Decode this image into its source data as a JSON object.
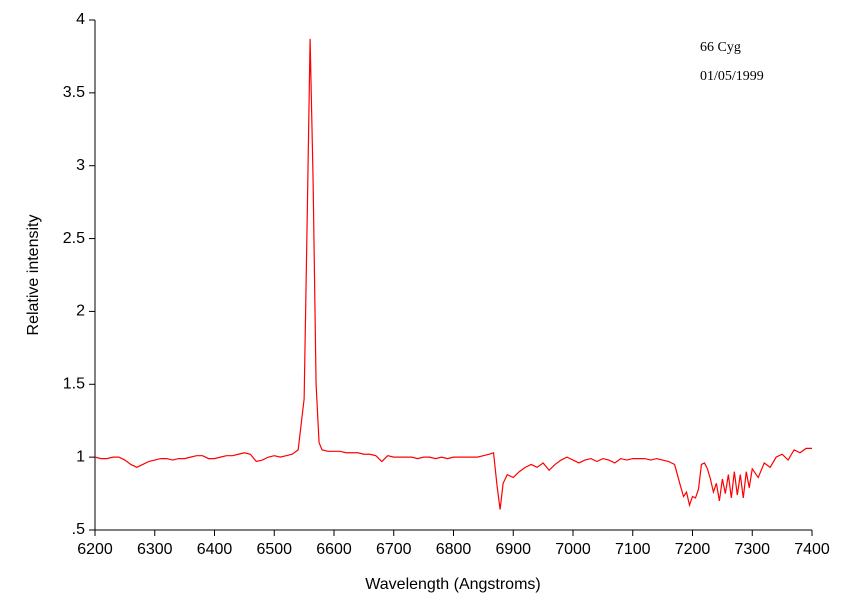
{
  "chart_data": {
    "type": "line",
    "x_label": "Wavelength (Angstroms)",
    "y_label": "Relative intensity",
    "annotations": [
      "66 Cyg",
      "01/05/1999"
    ],
    "color": "#ff0000",
    "xlim": [
      6200,
      7400
    ],
    "xticks": [
      6200,
      6300,
      6400,
      6500,
      6600,
      6700,
      6800,
      6900,
      7000,
      7100,
      7200,
      7300,
      7400
    ],
    "ylim": [
      0.5,
      4
    ],
    "yticks": [
      {
        "value": 0.5,
        "label": ".5"
      },
      1,
      1.5,
      2,
      2.5,
      3,
      3.5,
      4
    ],
    "x": [
      6200,
      6210,
      6220,
      6230,
      6240,
      6250,
      6260,
      6270,
      6280,
      6290,
      6300,
      6310,
      6320,
      6330,
      6340,
      6350,
      6360,
      6370,
      6380,
      6390,
      6400,
      6410,
      6420,
      6430,
      6440,
      6450,
      6460,
      6470,
      6480,
      6490,
      6500,
      6510,
      6520,
      6530,
      6540,
      6550,
      6555,
      6560,
      6565,
      6570,
      6575,
      6580,
      6590,
      6600,
      6610,
      6620,
      6630,
      6640,
      6650,
      6660,
      6670,
      6680,
      6690,
      6700,
      6710,
      6720,
      6730,
      6740,
      6750,
      6760,
      6770,
      6780,
      6790,
      6800,
      6810,
      6820,
      6830,
      6840,
      6850,
      6860,
      6867,
      6873,
      6878,
      6883,
      6890,
      6900,
      6910,
      6920,
      6930,
      6940,
      6950,
      6960,
      6970,
      6980,
      6990,
      7000,
      7010,
      7020,
      7030,
      7040,
      7050,
      7060,
      7070,
      7080,
      7090,
      7100,
      7110,
      7120,
      7130,
      7140,
      7150,
      7160,
      7170,
      7180,
      7185,
      7190,
      7195,
      7200,
      7205,
      7210,
      7215,
      7220,
      7225,
      7230,
      7235,
      7240,
      7245,
      7250,
      7255,
      7260,
      7265,
      7270,
      7275,
      7280,
      7285,
      7290,
      7295,
      7300,
      7310,
      7320,
      7330,
      7340,
      7350,
      7360,
      7370,
      7380,
      7390,
      7400
    ],
    "values": [
      1.0,
      0.99,
      0.99,
      1.0,
      1.0,
      0.98,
      0.95,
      0.93,
      0.95,
      0.97,
      0.98,
      0.99,
      0.99,
      0.98,
      0.99,
      0.99,
      1.0,
      1.01,
      1.01,
      0.99,
      0.99,
      1.0,
      1.01,
      1.01,
      1.02,
      1.03,
      1.02,
      0.97,
      0.98,
      1.0,
      1.01,
      1.0,
      1.01,
      1.02,
      1.05,
      1.4,
      2.6,
      3.87,
      2.9,
      1.5,
      1.1,
      1.05,
      1.04,
      1.04,
      1.04,
      1.03,
      1.03,
      1.03,
      1.02,
      1.02,
      1.01,
      0.97,
      1.01,
      1.0,
      1.0,
      1.0,
      1.0,
      0.99,
      1.0,
      1.0,
      0.99,
      1.0,
      0.99,
      1.0,
      1.0,
      1.0,
      1.0,
      1.0,
      1.01,
      1.02,
      1.03,
      0.8,
      0.64,
      0.82,
      0.88,
      0.86,
      0.9,
      0.93,
      0.95,
      0.93,
      0.96,
      0.91,
      0.95,
      0.98,
      1.0,
      0.98,
      0.96,
      0.98,
      0.99,
      0.97,
      0.99,
      0.98,
      0.96,
      0.99,
      0.98,
      0.99,
      0.99,
      0.99,
      0.98,
      0.99,
      0.98,
      0.97,
      0.95,
      0.8,
      0.73,
      0.76,
      0.67,
      0.73,
      0.72,
      0.78,
      0.95,
      0.96,
      0.92,
      0.85,
      0.76,
      0.82,
      0.7,
      0.85,
      0.75,
      0.88,
      0.72,
      0.9,
      0.74,
      0.88,
      0.72,
      0.9,
      0.79,
      0.92,
      0.86,
      0.96,
      0.93,
      1.0,
      1.02,
      0.98,
      1.05,
      1.03,
      1.06,
      1.06
    ]
  }
}
